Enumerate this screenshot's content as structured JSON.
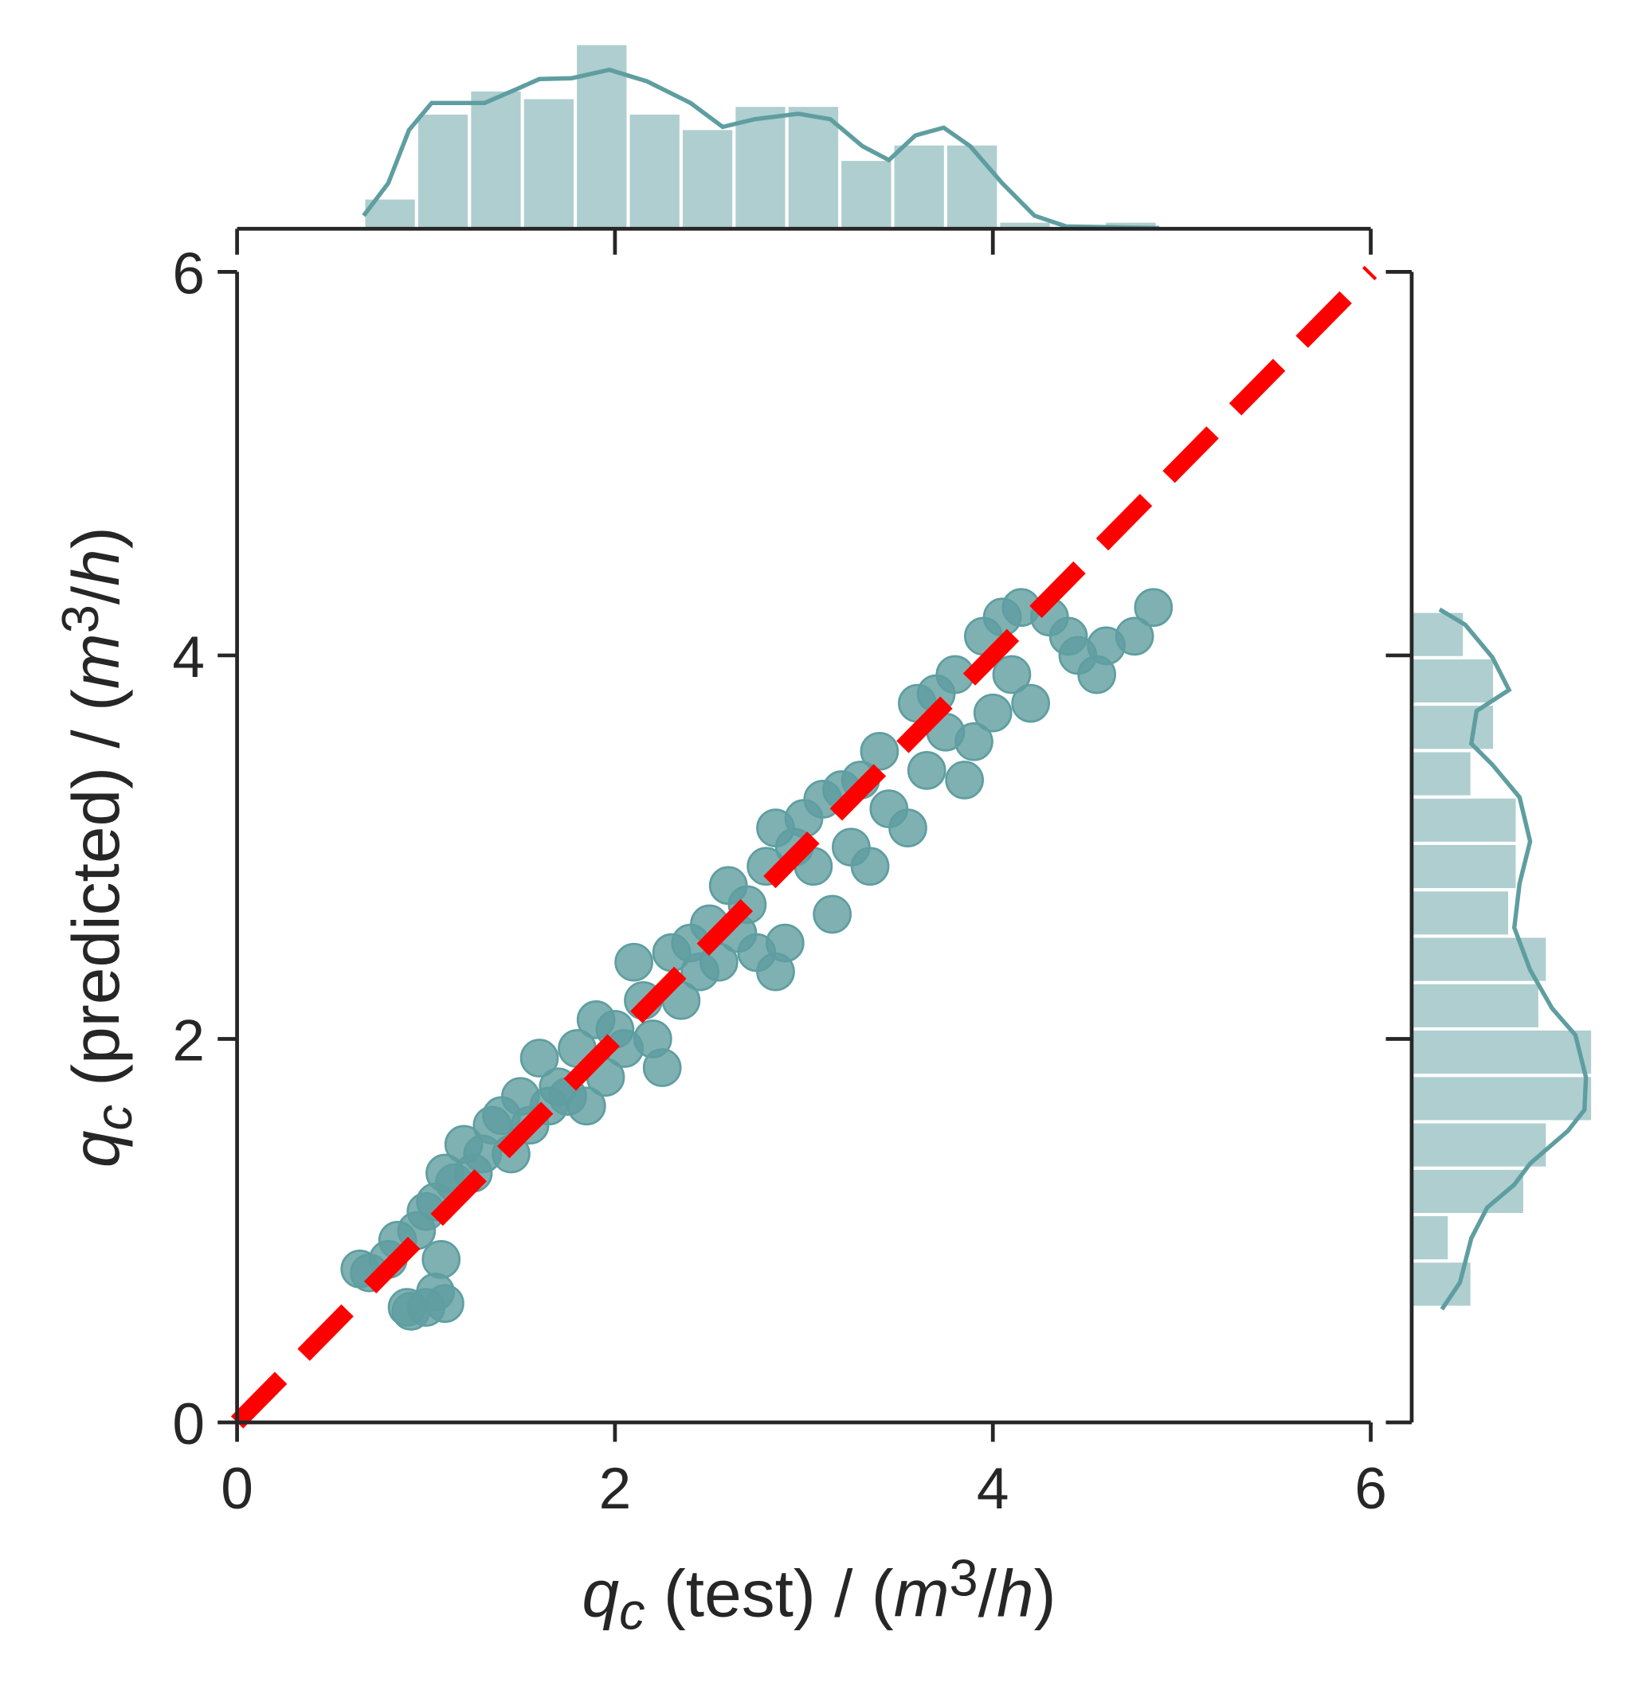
{
  "chart_data": {
    "type": "scatter",
    "x_label": [
      "q",
      "c",
      " (test) / (",
      "m",
      "3",
      "/",
      "h",
      ")"
    ],
    "y_label": [
      "q",
      "c",
      " (predicted) / (",
      "m",
      "3",
      "/",
      "h",
      ")"
    ],
    "color": "#5f9ea0",
    "xlim": [
      0,
      6
    ],
    "ylim": [
      0,
      6
    ],
    "xticks": [
      0,
      2,
      4,
      6
    ],
    "yticks": [
      0,
      2,
      4,
      6
    ],
    "x": [
      0.65,
      0.7,
      0.8,
      0.85,
      0.9,
      0.92,
      0.95,
      1.0,
      1.05,
      1.1,
      1.08,
      1.0,
      1.05,
      1.1,
      1.15,
      1.2,
      1.25,
      1.3,
      1.35,
      1.4,
      1.45,
      1.5,
      1.55,
      1.6,
      1.65,
      1.7,
      1.75,
      1.8,
      1.85,
      1.9,
      1.95,
      2.0,
      2.05,
      2.1,
      2.15,
      2.2,
      2.25,
      2.3,
      2.35,
      2.4,
      2.45,
      2.5,
      2.55,
      2.6,
      2.65,
      2.7,
      2.75,
      2.8,
      2.85,
      2.9,
      2.85,
      2.95,
      3.0,
      3.05,
      3.1,
      3.15,
      3.2,
      3.25,
      3.3,
      3.35,
      3.4,
      3.45,
      3.55,
      3.6,
      3.65,
      3.7,
      3.75,
      3.8,
      3.85,
      3.9,
      3.95,
      4.0,
      4.05,
      4.1,
      4.15,
      4.2,
      4.3,
      4.4,
      4.45,
      4.55,
      4.6,
      4.75,
      4.85
    ],
    "values": [
      0.8,
      0.78,
      0.85,
      0.95,
      0.6,
      0.58,
      1.0,
      0.6,
      0.68,
      0.62,
      0.85,
      1.1,
      1.15,
      1.3,
      1.25,
      1.45,
      1.3,
      1.4,
      1.55,
      1.6,
      1.4,
      1.7,
      1.55,
      1.9,
      1.65,
      1.75,
      1.7,
      1.95,
      1.65,
      2.1,
      1.8,
      2.05,
      1.95,
      2.4,
      2.2,
      2.0,
      1.85,
      2.45,
      2.2,
      2.5,
      2.35,
      2.6,
      2.4,
      2.8,
      2.55,
      2.7,
      2.45,
      2.9,
      2.35,
      2.5,
      3.1,
      3.0,
      3.15,
      2.9,
      3.25,
      2.65,
      3.3,
      3.0,
      3.35,
      2.9,
      3.5,
      3.2,
      3.1,
      3.75,
      3.4,
      3.8,
      3.6,
      3.9,
      3.35,
      3.55,
      4.1,
      3.7,
      4.2,
      3.9,
      4.25,
      3.75,
      4.2,
      4.1,
      4.0,
      3.9,
      4.05,
      4.1,
      4.25
    ],
    "reference_line": {
      "x": [
        0,
        6
      ],
      "y": [
        0,
        6
      ],
      "color": "#ff0000"
    },
    "marginals": {
      "top": {
        "type": "histogram",
        "bins": [
          0.67,
          0.95,
          1.23,
          1.51,
          1.79,
          2.07,
          2.35,
          2.63,
          2.91,
          3.19,
          3.47,
          3.75,
          4.03,
          4.31,
          4.59,
          4.87
        ],
        "counts": [
          4,
          15,
          18,
          17,
          24,
          15,
          13,
          16,
          16,
          9,
          11,
          11,
          1,
          0,
          1
        ],
        "kde_x": [
          0.67,
          0.8,
          0.91,
          1.03,
          1.2,
          1.31,
          1.48,
          1.6,
          1.77,
          1.97,
          2.17,
          2.4,
          2.57,
          2.74,
          2.97,
          3.14,
          3.31,
          3.45,
          3.59,
          3.74,
          3.88,
          4.05,
          4.22,
          4.39,
          4.88
        ],
        "kde_values": [
          1.7,
          5.9,
          12.8,
          16.3,
          16.3,
          16.3,
          18.1,
          19.4,
          19.5,
          20.6,
          19.1,
          16.3,
          13.2,
          14.2,
          14.9,
          14.2,
          10.7,
          8.9,
          12.1,
          13.1,
          10.7,
          5.9,
          1.7,
          0.3,
          0.1
        ]
      },
      "right": {
        "type": "histogram",
        "bins": [
          0.6,
          0.842,
          1.084,
          1.326,
          1.568,
          1.81,
          2.052,
          2.294,
          2.536,
          2.778,
          3.02,
          3.262,
          3.504,
          3.746,
          3.988,
          4.23
        ],
        "counts": [
          8,
          5,
          15,
          18,
          24,
          24,
          17,
          18,
          13,
          14,
          14,
          8,
          11,
          11,
          7
        ],
        "kde_y": [
          0.59,
          0.73,
          0.96,
          1.12,
          1.24,
          1.35,
          1.52,
          1.63,
          1.8,
          2.02,
          2.16,
          2.36,
          2.58,
          2.81,
          3.03,
          3.26,
          3.43,
          3.54,
          3.71,
          3.82,
          3.99,
          4.16,
          4.24
        ],
        "kde_values": [
          4.0,
          6.4,
          7.9,
          10,
          13.6,
          15.7,
          20.7,
          22.9,
          23.1,
          21.7,
          18.6,
          15.7,
          13.6,
          14.3,
          15.7,
          14.3,
          10.7,
          7.9,
          8.6,
          12.9,
          10.7,
          7.1,
          3.7
        ]
      }
    }
  }
}
